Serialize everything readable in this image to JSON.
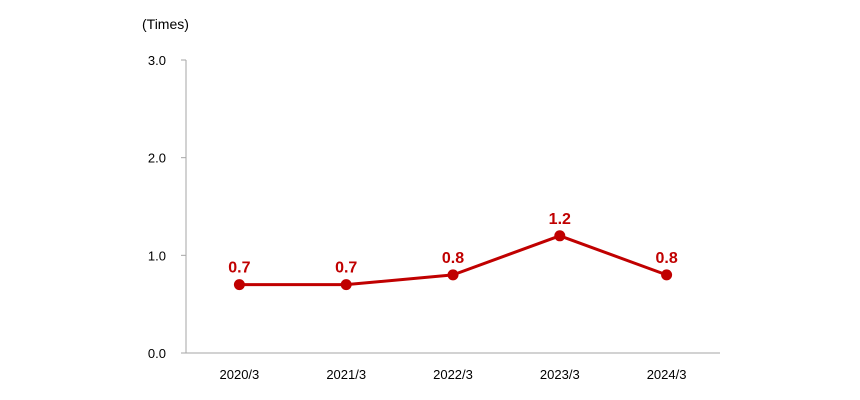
{
  "chart_data": {
    "type": "line",
    "unit_label": "(Times)",
    "categories": [
      "2020/3",
      "2021/3",
      "2022/3",
      "2023/3",
      "2024/3"
    ],
    "series": [
      {
        "values": [
          0.7,
          0.7,
          0.8,
          1.2,
          0.8
        ],
        "labels": [
          "0.7",
          "0.7",
          "0.8",
          "1.2",
          "0.8"
        ]
      }
    ],
    "ylim": [
      0,
      3
    ],
    "yticks": [
      0,
      1,
      2,
      3
    ],
    "ytick_labels": [
      "0.0",
      "1.0",
      "2.0",
      "3.0"
    ],
    "grid": false,
    "colors": {
      "series": "#c00000",
      "axis": "#a6a6a6",
      "text": "#000000"
    }
  }
}
